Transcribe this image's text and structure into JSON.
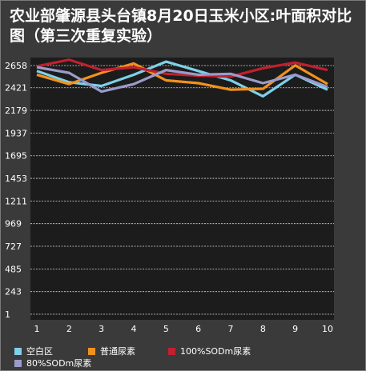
{
  "chart_data": {
    "type": "line",
    "title": "农业部肇源县头台镇8月20日玉米小区:叶面积对比图（第三次重复实验）",
    "x": [
      1,
      2,
      3,
      4,
      5,
      6,
      7,
      8,
      9,
      10
    ],
    "ylim": [
      1,
      2658
    ],
    "yticks": [
      1,
      243,
      485,
      727,
      969,
      1211,
      1453,
      1695,
      1937,
      2179,
      2421,
      2658
    ],
    "grid": true,
    "legend_position": "bottom",
    "series": [
      {
        "name": "空白区",
        "color": "#7fd0e8",
        "values": [
          2600,
          2480,
          2440,
          2560,
          2700,
          2600,
          2500,
          2330,
          2560,
          2400
        ]
      },
      {
        "name": "普通尿素",
        "color": "#f0921e",
        "values": [
          2560,
          2460,
          2580,
          2680,
          2500,
          2470,
          2400,
          2410,
          2660,
          2460
        ]
      },
      {
        "name": "100%SODm尿素",
        "color": "#c0202f",
        "values": [
          2650,
          2720,
          2610,
          2640,
          2570,
          2550,
          2540,
          2630,
          2690,
          2610
        ]
      },
      {
        "name": "80%SODm尿素",
        "color": "#9b9bcc",
        "values": [
          2640,
          2580,
          2380,
          2460,
          2610,
          2560,
          2570,
          2470,
          2560,
          2430
        ]
      }
    ]
  }
}
